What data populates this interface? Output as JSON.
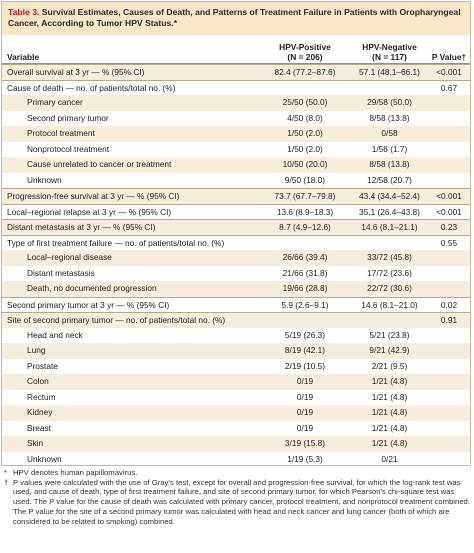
{
  "table": {
    "label": "Table 3.",
    "title": " Survival Estimates, Causes of Death, and Patterns of Treatment Failure in Patients with Oropharyngeal Cancer, According to Tumor HPV Status.*",
    "headers": {
      "variable": "Variable",
      "hpv_pos": "HPV-Positive",
      "hpv_pos_n": "(N = 206)",
      "hpv_neg": "HPV-Negative",
      "hpv_neg_n": "(N = 117)",
      "pval": "P Value†"
    },
    "rows": [
      {
        "kind": "main",
        "shade": true,
        "label": "Overall survival at 3 yr — % (95% CI)",
        "pos": "82.4 (77.2–87.6)",
        "neg": "57.1 (48.1–66.1)",
        "p": "<0.001"
      },
      {
        "kind": "main",
        "shade": false,
        "label": "Cause of death — no. of patients/total no. (%)",
        "pos": "",
        "neg": "",
        "p": "0.67"
      },
      {
        "kind": "sub",
        "shade": true,
        "label": "Primary cancer",
        "pos": "25/50 (50.0)",
        "neg": "29/58 (50.0)",
        "p": ""
      },
      {
        "kind": "sub",
        "shade": false,
        "label": "Second primary tumor",
        "pos": "4/50 (8.0)",
        "neg": "8/58 (13.8)",
        "p": ""
      },
      {
        "kind": "sub",
        "shade": true,
        "label": "Protocol treatment",
        "pos": "1/50 (2.0)",
        "neg": "0/58",
        "p": ""
      },
      {
        "kind": "sub",
        "shade": false,
        "label": "Nonprotocol treatment",
        "pos": "1/50 (2.0)",
        "neg": "1/58 (1.7)",
        "p": ""
      },
      {
        "kind": "sub",
        "shade": true,
        "label": "Cause unrelated to cancer or treatment",
        "pos": "10/50 (20.0)",
        "neg": "8/58 (13.8)",
        "p": ""
      },
      {
        "kind": "sub",
        "shade": false,
        "label": "Unknown",
        "pos": "9/50 (18.0)",
        "neg": "12/58 (20.7)",
        "p": ""
      },
      {
        "kind": "main",
        "shade": true,
        "label": "Progression-free survival at 3 yr — % (95% CI)",
        "pos": "73.7 (67.7–79.8)",
        "neg": "43.4 (34.4–52.4)",
        "p": "<0.001"
      },
      {
        "kind": "main",
        "shade": false,
        "label": "Local–regional relapse at 3 yr — % (95% CI)",
        "pos": "13.6 (8.9–18.3)",
        "neg": "35.1 (26.4–43.8)",
        "p": "<0.001"
      },
      {
        "kind": "main",
        "shade": true,
        "label": "Distant metastasis at 3 yr — % (95% CI)",
        "pos": "8.7 (4.9–12.6)",
        "neg": "14.6 (8.1–21.1)",
        "p": "0.23"
      },
      {
        "kind": "main",
        "shade": false,
        "label": "Type of first treatment failure — no. of patients/total no. (%)",
        "pos": "",
        "neg": "",
        "p": "0.55"
      },
      {
        "kind": "sub",
        "shade": true,
        "label": "Local–regional disease",
        "pos": "26/66 (39.4)",
        "neg": "33/72 (45.8)",
        "p": ""
      },
      {
        "kind": "sub",
        "shade": false,
        "label": "Distant metastasis",
        "pos": "21/66 (31.8)",
        "neg": "17/72 (23.6)",
        "p": ""
      },
      {
        "kind": "sub",
        "shade": true,
        "label": "Death, no documented progression",
        "pos": "19/66 (28.8)",
        "neg": "22/72 (30.6)",
        "p": ""
      },
      {
        "kind": "main",
        "shade": false,
        "label": "Second primary tumor at 3 yr — % (95% CI)",
        "pos": "5.9 (2.6–9.1)",
        "neg": "14.6 (8.1–21.0)",
        "p": "0.02"
      },
      {
        "kind": "main",
        "shade": true,
        "label": "Site of second primary tumor — no. of patients/total no. (%)",
        "pos": "",
        "neg": "",
        "p": "0.91"
      },
      {
        "kind": "sub",
        "shade": false,
        "label": "Head and neck",
        "pos": "5/19 (26.3)",
        "neg": "5/21 (23.8)",
        "p": ""
      },
      {
        "kind": "sub",
        "shade": true,
        "label": "Lung",
        "pos": "8/19 (42.1)",
        "neg": "9/21 (42.9)",
        "p": ""
      },
      {
        "kind": "sub",
        "shade": false,
        "label": "Prostate",
        "pos": "2/19 (10.5)",
        "neg": "2/21 (9.5)",
        "p": ""
      },
      {
        "kind": "sub",
        "shade": true,
        "label": "Colon",
        "pos": "0/19",
        "neg": "1/21 (4.8)",
        "p": ""
      },
      {
        "kind": "sub",
        "shade": false,
        "label": "Rectum",
        "pos": "0/19",
        "neg": "1/21 (4.8)",
        "p": ""
      },
      {
        "kind": "sub",
        "shade": true,
        "label": "Kidney",
        "pos": "0/19",
        "neg": "1/21 (4.8)",
        "p": ""
      },
      {
        "kind": "sub",
        "shade": false,
        "label": "Breast",
        "pos": "0/19",
        "neg": "1/21 (4.8)",
        "p": ""
      },
      {
        "kind": "sub",
        "shade": true,
        "label": "Skin",
        "pos": "3/19 (15.8)",
        "neg": "1/21 (4.8)",
        "p": ""
      },
      {
        "kind": "sub",
        "shade": false,
        "label": "Unknown",
        "pos": "1/19 (5.3)",
        "neg": "0/21",
        "p": ""
      }
    ]
  },
  "footnotes": [
    {
      "mark": "*",
      "text": "HPV denotes human papillomavirus."
    },
    {
      "mark": "†",
      "text": "P values were calculated with the use of Gray’s test, except for overall and progression-free survival, for which the log-rank test was used, and cause of death, type of first treatment failure, and site of second primary tumor, for which Pearson’s chi-square test was used. The P value for the cause of death was calculated with primary cancer, protocol treatment, and nonprotocol treatment combined. The P value for the site of a second primary tumor was calculated with head and neck cancer and lung cancer (both of which are considered to be related to smoking) combined."
    }
  ],
  "colors": {
    "title_band": "#f7e6c8",
    "row_shade": "#f6eddc",
    "table_label": "#c8102e",
    "rule": "#b7a98f"
  }
}
